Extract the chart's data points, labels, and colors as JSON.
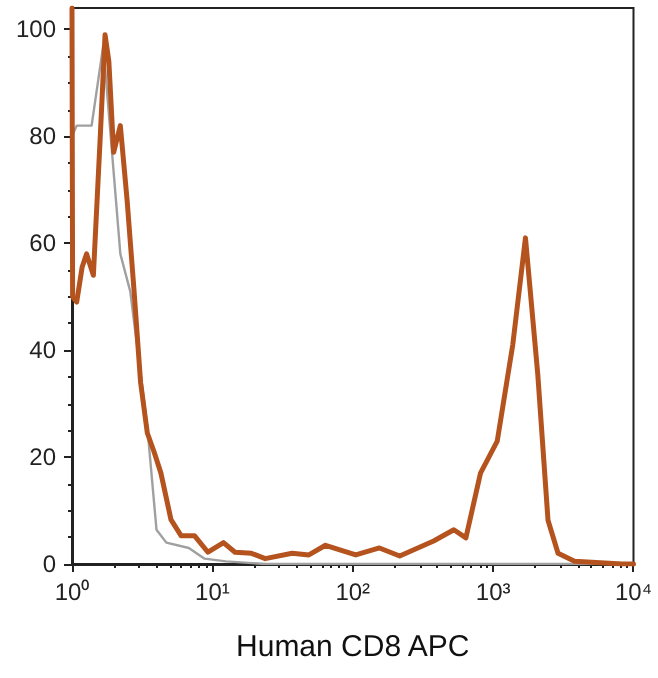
{
  "chart_data": {
    "type": "line",
    "xlabel": "Human CD8 APC",
    "log": "x",
    "xlim": [
      1,
      10000
    ],
    "xticks": [
      {
        "value": 1,
        "label": "10⁰"
      },
      {
        "value": 10,
        "label": "10¹"
      },
      {
        "value": 100,
        "label": "10²"
      },
      {
        "value": 1000,
        "label": "10³"
      },
      {
        "value": 10000,
        "label": "10⁴"
      }
    ],
    "ylim": [
      0,
      104
    ],
    "yticks": [
      0,
      20,
      40,
      60,
      80,
      100
    ],
    "grid": false,
    "series": [
      {
        "color": "#a0a0a0",
        "x": [
          1,
          1.08,
          1.38,
          1.67,
          2.21,
          2.6,
          3.44,
          4.0,
          4.7,
          6.8,
          8.8,
          12.5,
          24,
          100,
          1000,
          10000
        ],
        "values": [
          80,
          82,
          82,
          97,
          58,
          51,
          25.6,
          6.4,
          4,
          3,
          1,
          0.5,
          0,
          0,
          0,
          0
        ]
      },
      {
        "color": "#b5531f",
        "x": [
          1,
          1.01,
          1.08,
          1.18,
          1.27,
          1.42,
          1.59,
          1.72,
          1.83,
          1.98,
          2.21,
          2.47,
          2.76,
          3.08,
          3.44,
          3.84,
          4.3,
          5.07,
          5.98,
          7.45,
          9.3,
          12,
          14.5,
          19,
          23.8,
          37,
          48.7,
          64,
          105,
          155,
          216,
          377,
          525,
          640,
          813,
          1070,
          1380,
          1700,
          2080,
          2460,
          2900,
          3800,
          8300,
          10000
        ],
        "values": [
          104,
          50,
          49,
          55.5,
          58,
          54,
          80,
          99,
          94,
          77,
          82,
          68,
          51.5,
          34,
          24.5,
          21,
          17,
          8.3,
          5.3,
          5.3,
          2.2,
          4,
          2.2,
          2,
          1,
          2,
          1.7,
          3.5,
          1.7,
          3,
          1.5,
          4.3,
          6.4,
          4.9,
          17,
          23,
          41,
          61,
          35.5,
          8.2,
          2,
          0.5,
          0,
          0
        ]
      }
    ]
  }
}
